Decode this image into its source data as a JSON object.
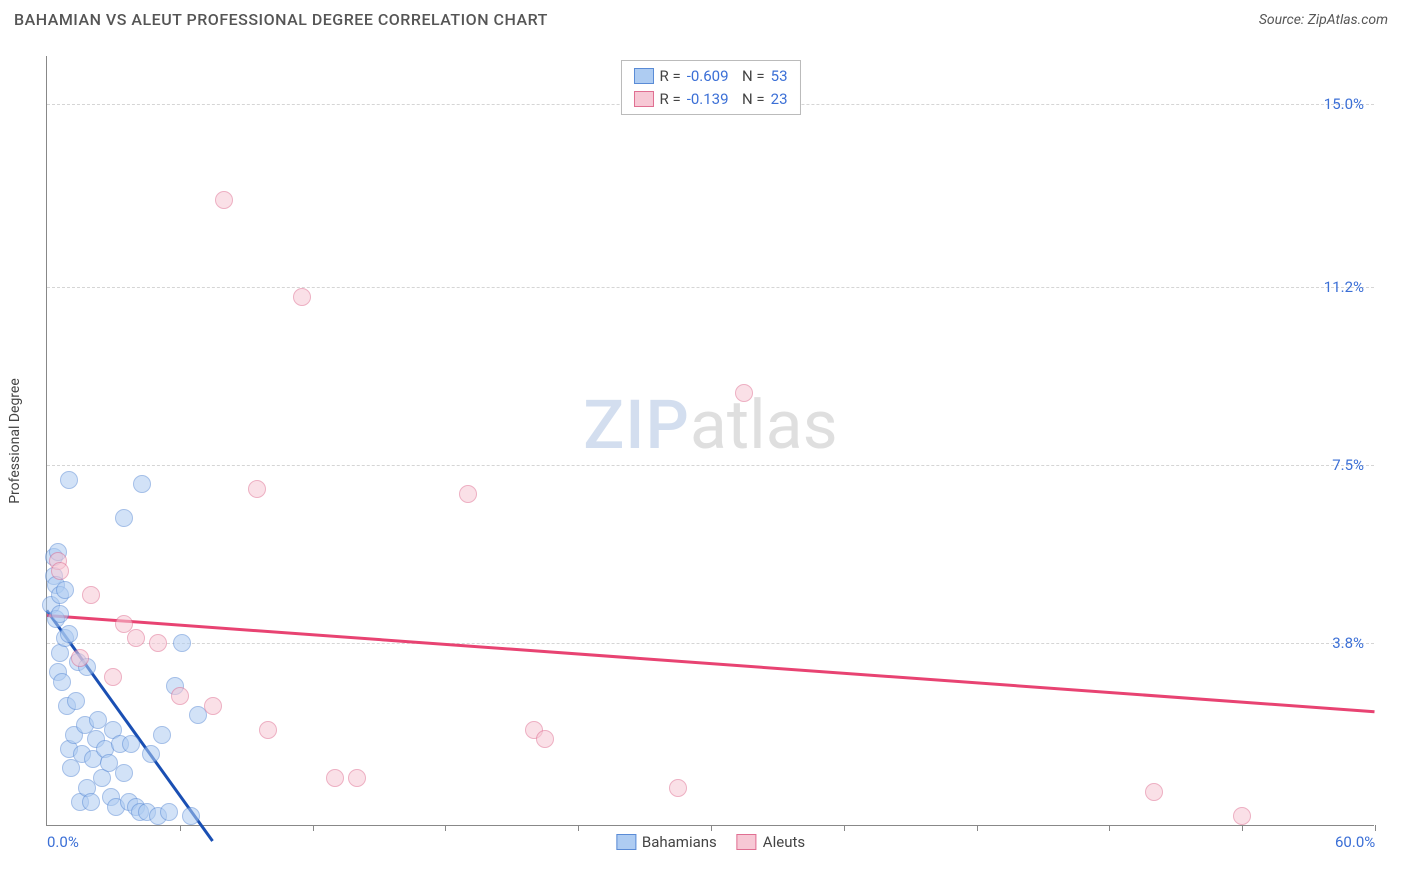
{
  "header": {
    "title": "BAHAMIAN VS ALEUT PROFESSIONAL DEGREE CORRELATION CHART",
    "source": "Source: ZipAtlas.com"
  },
  "chart": {
    "type": "scatter",
    "yaxis_title": "Professional Degree",
    "xlim": [
      0,
      60
    ],
    "ylim": [
      0,
      16
    ],
    "xtick_step": 6,
    "xaxis_labels": [
      {
        "pos": 0,
        "text": "0.0%"
      },
      {
        "pos": 60,
        "text": "60.0%"
      }
    ],
    "yaxis_ticks": [
      {
        "val": 3.8,
        "label": "3.8%"
      },
      {
        "val": 7.5,
        "label": "7.5%"
      },
      {
        "val": 11.2,
        "label": "11.2%"
      },
      {
        "val": 15.0,
        "label": "15.0%"
      }
    ],
    "background_color": "#ffffff",
    "grid_color": "#d5d5d5",
    "marker_radius": 9,
    "marker_opacity": 0.55,
    "series": [
      {
        "name": "Bahamians",
        "fill": "#aeccf2",
        "stroke": "#5a8bd6",
        "trend_color": "#1a4fb3",
        "R": "-0.609",
        "N": "53",
        "trend": {
          "x1": 0,
          "y1": 4.5,
          "x2": 7.5,
          "y2": -0.3
        },
        "points": [
          [
            0.2,
            4.6
          ],
          [
            0.3,
            5.2
          ],
          [
            0.3,
            5.6
          ],
          [
            0.4,
            4.3
          ],
          [
            0.5,
            5.7
          ],
          [
            0.6,
            4.4
          ],
          [
            0.5,
            3.2
          ],
          [
            0.6,
            3.6
          ],
          [
            0.7,
            3.0
          ],
          [
            0.8,
            3.9
          ],
          [
            0.9,
            2.5
          ],
          [
            1.0,
            4.0
          ],
          [
            1.0,
            1.6
          ],
          [
            1.1,
            1.2
          ],
          [
            1.2,
            1.9
          ],
          [
            1.3,
            2.6
          ],
          [
            1.4,
            3.4
          ],
          [
            1.5,
            0.5
          ],
          [
            1.6,
            1.5
          ],
          [
            1.7,
            2.1
          ],
          [
            1.8,
            0.8
          ],
          [
            1.8,
            3.3
          ],
          [
            2.0,
            0.5
          ],
          [
            2.1,
            1.4
          ],
          [
            2.2,
            1.8
          ],
          [
            2.3,
            2.2
          ],
          [
            2.5,
            1.0
          ],
          [
            2.6,
            1.6
          ],
          [
            2.8,
            1.3
          ],
          [
            2.9,
            0.6
          ],
          [
            3.0,
            2.0
          ],
          [
            3.1,
            0.4
          ],
          [
            3.3,
            1.7
          ],
          [
            3.5,
            1.1
          ],
          [
            3.7,
            0.5
          ],
          [
            3.8,
            1.7
          ],
          [
            4.0,
            0.4
          ],
          [
            4.2,
            0.3
          ],
          [
            4.5,
            0.3
          ],
          [
            4.7,
            1.5
          ],
          [
            5.0,
            0.2
          ],
          [
            5.2,
            1.9
          ],
          [
            5.5,
            0.3
          ],
          [
            5.8,
            2.9
          ],
          [
            6.1,
            3.8
          ],
          [
            6.5,
            0.2
          ],
          [
            6.8,
            2.3
          ],
          [
            1.0,
            7.2
          ],
          [
            3.5,
            6.4
          ],
          [
            0.4,
            5.0
          ],
          [
            0.6,
            4.8
          ],
          [
            4.3,
            7.1
          ],
          [
            0.8,
            4.9
          ]
        ]
      },
      {
        "name": "Aleuts",
        "fill": "#f7c8d5",
        "stroke": "#e06f92",
        "trend_color": "#e84372",
        "R": "-0.139",
        "N": "23",
        "trend": {
          "x1": 0,
          "y1": 4.4,
          "x2": 60,
          "y2": 2.4
        },
        "points": [
          [
            0.5,
            5.5
          ],
          [
            0.6,
            5.3
          ],
          [
            1.5,
            3.5
          ],
          [
            2.0,
            4.8
          ],
          [
            3.0,
            3.1
          ],
          [
            3.5,
            4.2
          ],
          [
            4.0,
            3.9
          ],
          [
            5.0,
            3.8
          ],
          [
            6.0,
            2.7
          ],
          [
            7.5,
            2.5
          ],
          [
            8.0,
            13.0
          ],
          [
            9.5,
            7.0
          ],
          [
            10.0,
            2.0
          ],
          [
            11.5,
            11.0
          ],
          [
            13.0,
            1.0
          ],
          [
            14.0,
            1.0
          ],
          [
            19.0,
            6.9
          ],
          [
            22.0,
            2.0
          ],
          [
            22.5,
            1.8
          ],
          [
            28.5,
            0.8
          ],
          [
            31.5,
            9.0
          ],
          [
            50.0,
            0.7
          ],
          [
            54.0,
            0.2
          ]
        ]
      }
    ],
    "bottom_legend": [
      {
        "label": "Bahamians",
        "fill": "#aeccf2",
        "stroke": "#5a8bd6"
      },
      {
        "label": "Aleuts",
        "fill": "#f7c8d5",
        "stroke": "#e06f92"
      }
    ],
    "watermark": {
      "part1": "ZIP",
      "part2": "atlas"
    }
  }
}
